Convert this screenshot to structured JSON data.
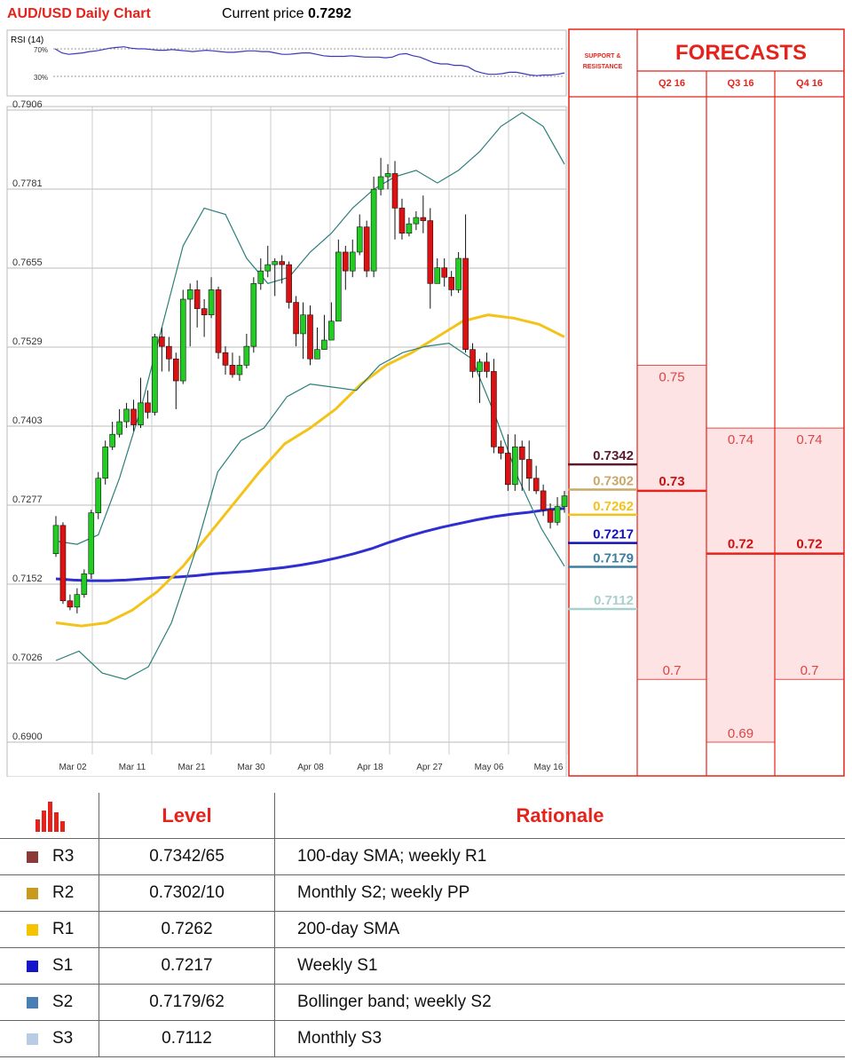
{
  "header": {
    "title": "AUD/USD Daily Chart",
    "price_label": "Current price",
    "price_value": "0.7292"
  },
  "rsi": {
    "label": "RSI (14)",
    "upper_label": "70%",
    "lower_label": "30%",
    "values": [
      70,
      64,
      62,
      63,
      64,
      66,
      67,
      69,
      71,
      72,
      73,
      71,
      70,
      70,
      69,
      68,
      68,
      69,
      68,
      67,
      66,
      67,
      68,
      67,
      66,
      65,
      65,
      66,
      67,
      67,
      66,
      66,
      64,
      62,
      62,
      63,
      64,
      64,
      62,
      60,
      59,
      59,
      59,
      60,
      59,
      58,
      58,
      58,
      57,
      58,
      62,
      63,
      60,
      58,
      54,
      50,
      48,
      48,
      46,
      46,
      44,
      38,
      35,
      33,
      33,
      34,
      36,
      36,
      34,
      32,
      31,
      32,
      32,
      33,
      35
    ]
  },
  "chart_data": {
    "type": "candlestick",
    "title": "AUD/USD Daily Chart",
    "y_ticks": [
      "0.7906",
      "0.7781",
      "0.7655",
      "0.7529",
      "0.7403",
      "0.7277",
      "0.7152",
      "0.7026",
      "0.6900"
    ],
    "ylim": [
      0.69,
      0.7906
    ],
    "x_ticks": [
      "Mar 02",
      "Mar 11",
      "Mar 21",
      "Mar 30",
      "Apr 08",
      "Apr 18",
      "Apr 27",
      "May 06",
      "May 16"
    ],
    "grid": true,
    "candles": [
      [
        0.72,
        0.7245,
        0.726,
        0.7195
      ],
      [
        0.7245,
        0.7125,
        0.725,
        0.712
      ],
      [
        0.7125,
        0.7115,
        0.7135,
        0.711
      ],
      [
        0.7115,
        0.7135,
        0.7145,
        0.7105
      ],
      [
        0.7135,
        0.7168,
        0.7175,
        0.713
      ],
      [
        0.7168,
        0.7265,
        0.727,
        0.716
      ],
      [
        0.7265,
        0.732,
        0.733,
        0.7255
      ],
      [
        0.732,
        0.737,
        0.738,
        0.731
      ],
      [
        0.737,
        0.739,
        0.741,
        0.7365
      ],
      [
        0.739,
        0.741,
        0.743,
        0.7385
      ],
      [
        0.741,
        0.743,
        0.744,
        0.74
      ],
      [
        0.743,
        0.7405,
        0.7445,
        0.7395
      ],
      [
        0.7405,
        0.744,
        0.748,
        0.74
      ],
      [
        0.744,
        0.7425,
        0.746,
        0.7415
      ],
      [
        0.7425,
        0.7545,
        0.755,
        0.742
      ],
      [
        0.7545,
        0.753,
        0.756,
        0.749
      ],
      [
        0.753,
        0.751,
        0.7545,
        0.749
      ],
      [
        0.751,
        0.7475,
        0.752,
        0.743
      ],
      [
        0.7475,
        0.7605,
        0.762,
        0.747
      ],
      [
        0.7605,
        0.762,
        0.763,
        0.753
      ],
      [
        0.762,
        0.759,
        0.7635,
        0.756
      ],
      [
        0.759,
        0.758,
        0.7605,
        0.7545
      ],
      [
        0.758,
        0.762,
        0.764,
        0.7575
      ],
      [
        0.762,
        0.752,
        0.7625,
        0.751
      ],
      [
        0.752,
        0.75,
        0.753,
        0.7485
      ],
      [
        0.75,
        0.7485,
        0.752,
        0.748
      ],
      [
        0.7485,
        0.75,
        0.7515,
        0.7475
      ],
      [
        0.75,
        0.753,
        0.755,
        0.7495
      ],
      [
        0.753,
        0.763,
        0.764,
        0.752
      ],
      [
        0.763,
        0.765,
        0.767,
        0.762
      ],
      [
        0.765,
        0.766,
        0.769,
        0.764
      ],
      [
        0.766,
        0.7665,
        0.767,
        0.761
      ],
      [
        0.7665,
        0.766,
        0.7675,
        0.763
      ],
      [
        0.766,
        0.76,
        0.7665,
        0.759
      ],
      [
        0.76,
        0.755,
        0.761,
        0.753
      ],
      [
        0.755,
        0.758,
        0.76,
        0.751
      ],
      [
        0.758,
        0.751,
        0.7595,
        0.75
      ],
      [
        0.751,
        0.7525,
        0.756,
        0.751
      ],
      [
        0.7525,
        0.754,
        0.758,
        0.7535
      ],
      [
        0.754,
        0.757,
        0.76,
        0.754
      ],
      [
        0.757,
        0.768,
        0.77,
        0.757
      ],
      [
        0.768,
        0.765,
        0.769,
        0.762
      ],
      [
        0.765,
        0.768,
        0.77,
        0.764
      ],
      [
        0.768,
        0.772,
        0.774,
        0.7675
      ],
      [
        0.772,
        0.765,
        0.773,
        0.764
      ],
      [
        0.765,
        0.778,
        0.78,
        0.764
      ],
      [
        0.778,
        0.78,
        0.783,
        0.777
      ],
      [
        0.78,
        0.7805,
        0.782,
        0.778
      ],
      [
        0.7805,
        0.775,
        0.7825,
        0.77
      ],
      [
        0.775,
        0.771,
        0.7765,
        0.77
      ],
      [
        0.771,
        0.7725,
        0.7735,
        0.7705
      ],
      [
        0.7725,
        0.7735,
        0.7745,
        0.7715
      ],
      [
        0.7735,
        0.773,
        0.777,
        0.771
      ],
      [
        0.773,
        0.763,
        0.775,
        0.759
      ],
      [
        0.763,
        0.7655,
        0.767,
        0.763
      ],
      [
        0.7655,
        0.764,
        0.767,
        0.7625
      ],
      [
        0.764,
        0.762,
        0.765,
        0.761
      ],
      [
        0.762,
        0.767,
        0.768,
        0.7615
      ],
      [
        0.767,
        0.7525,
        0.774,
        0.752
      ],
      [
        0.7525,
        0.749,
        0.7535,
        0.748
      ],
      [
        0.749,
        0.7505,
        0.751,
        0.744
      ],
      [
        0.7505,
        0.749,
        0.752,
        0.748
      ],
      [
        0.749,
        0.737,
        0.751,
        0.736
      ],
      [
        0.737,
        0.736,
        0.738,
        0.735
      ],
      [
        0.736,
        0.731,
        0.739,
        0.73
      ],
      [
        0.731,
        0.737,
        0.739,
        0.73
      ],
      [
        0.737,
        0.735,
        0.738,
        0.73
      ],
      [
        0.735,
        0.732,
        0.738,
        0.73
      ],
      [
        0.732,
        0.73,
        0.734,
        0.7295
      ],
      [
        0.73,
        0.727,
        0.731,
        0.726
      ],
      [
        0.727,
        0.725,
        0.728,
        0.724
      ],
      [
        0.725,
        0.7275,
        0.729,
        0.7245
      ],
      [
        0.7275,
        0.7292,
        0.73,
        0.7265
      ]
    ],
    "series": [
      {
        "name": "",
        "color": "#2e2ed1",
        "values": [
          0.716,
          0.7158,
          0.7157,
          0.7157,
          0.7158,
          0.716,
          0.7162,
          0.7163,
          0.7165,
          0.7168,
          0.717,
          0.7172,
          0.7175,
          0.7178,
          0.7182,
          0.7187,
          0.7193,
          0.72,
          0.7208,
          0.7218,
          0.7227,
          0.7235,
          0.7242,
          0.7248,
          0.7254,
          0.7259,
          0.7263,
          0.7266,
          0.727,
          0.7272
        ]
      },
      {
        "name": "",
        "color": "#f4c31a",
        "values": [
          0.709,
          0.7085,
          0.709,
          0.711,
          0.714,
          0.718,
          0.723,
          0.728,
          0.733,
          0.7375,
          0.74,
          0.743,
          0.747,
          0.75,
          0.752,
          0.7545,
          0.757,
          0.758,
          0.7575,
          0.7565,
          0.7545
        ]
      },
      {
        "name": "",
        "color": "#2a7f7a",
        "values": [
          0.722,
          0.7215,
          0.723,
          0.732,
          0.743,
          0.756,
          0.769,
          0.775,
          0.774,
          0.767,
          0.763,
          0.764,
          0.768,
          0.771,
          0.775,
          0.778,
          0.78,
          0.781,
          0.779,
          0.781,
          0.784,
          0.788,
          0.7902,
          0.788,
          0.782
        ]
      },
      {
        "name": "",
        "color": "#2a7f7a",
        "values": [
          0.703,
          0.7045,
          0.701,
          0.7,
          0.702,
          0.709,
          0.72,
          0.733,
          0.738,
          0.74,
          0.745,
          0.747,
          0.7465,
          0.746,
          0.75,
          0.752,
          0.753,
          0.7535,
          0.751,
          0.742,
          0.732,
          0.724,
          0.718
        ]
      }
    ]
  },
  "sr_levels": [
    {
      "value": "0.7342",
      "color": "#5a1a2e"
    },
    {
      "value": "0.7302",
      "color": "#c9a86a"
    },
    {
      "value": "0.7262",
      "color": "#f4c31a"
    },
    {
      "value": "0.7217",
      "color": "#1010b8"
    },
    {
      "value": "0.7179",
      "color": "#3b7ea0"
    },
    {
      "value": "0.7112",
      "color": "#a8d0cc"
    }
  ],
  "forecasts": {
    "sr_header_1": "SUPPORT &",
    "sr_header_2": "RESISTANCE",
    "title": "FORECASTS",
    "quarters": [
      {
        "label": "Q2 16",
        "high": "0.75",
        "mid": "0.73",
        "low": "0.7",
        "high_val": 0.75,
        "mid_val": 0.73,
        "low_val": 0.7
      },
      {
        "label": "Q3 16",
        "high": "0.74",
        "mid": "0.72",
        "low": "0.69",
        "high_val": 0.74,
        "mid_val": 0.72,
        "low_val": 0.69
      },
      {
        "label": "Q4 16",
        "high": "0.74",
        "mid": "0.72",
        "low": "0.7",
        "high_val": 0.74,
        "mid_val": 0.72,
        "low_val": 0.7
      }
    ]
  },
  "table": {
    "header_level": "Level",
    "header_rationale": "Rationale",
    "rows": [
      {
        "name": "R3",
        "level": "0.7342/65",
        "rationale": "100-day SMA; weekly R1",
        "color": "#8b3a3a"
      },
      {
        "name": "R2",
        "level": "0.7302/10",
        "rationale": "Monthly S2; weekly PP",
        "color": "#c89a1e"
      },
      {
        "name": "R1",
        "level": "0.7262",
        "rationale": "200-day SMA",
        "color": "#f5c400"
      },
      {
        "name": "S1",
        "level": "0.7217",
        "rationale": "Weekly S1",
        "color": "#1414c8"
      },
      {
        "name": "S2",
        "level": "0.7179/62",
        "rationale": "Bollinger band; weekly S2",
        "color": "#4a7fb5"
      },
      {
        "name": "S3",
        "level": "0.7112",
        "rationale": "Monthly S3",
        "color": "#b8cde3"
      }
    ]
  }
}
